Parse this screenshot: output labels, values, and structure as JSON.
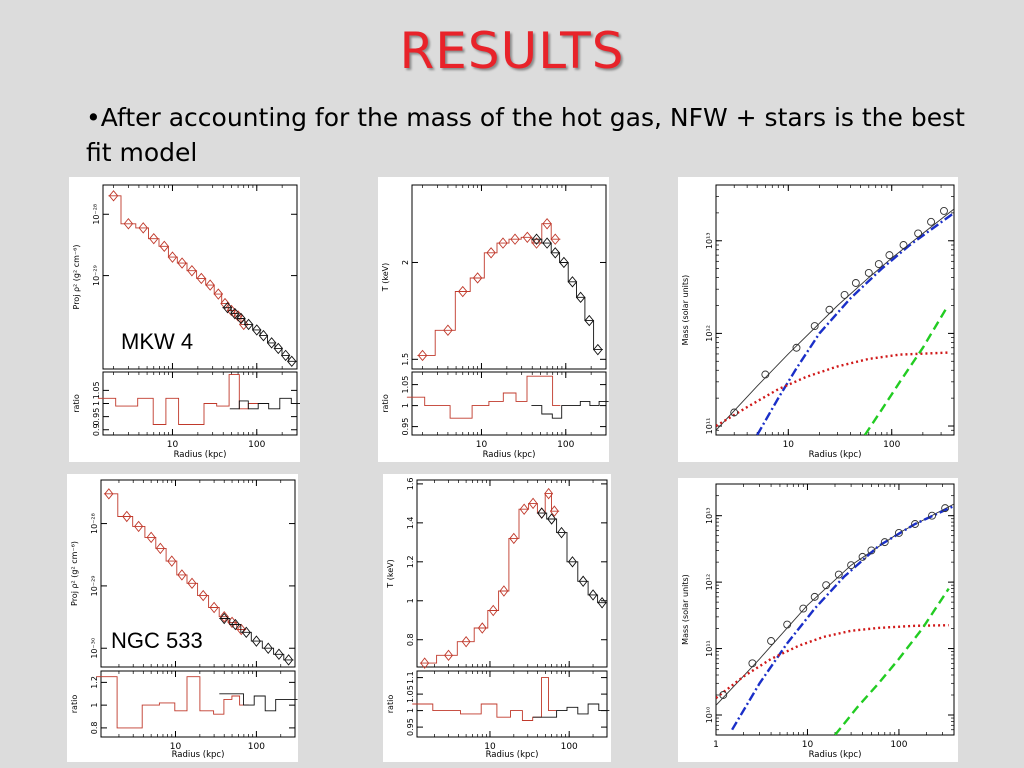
{
  "slide": {
    "title": "RESULTS",
    "bullet": "•After accounting for the mass of the hot gas, NFW + stars is the best fit model"
  },
  "labels": {
    "mkw4": "MKW 4",
    "ngc533": "NGC 533"
  },
  "colors": {
    "data_red": "#c0392b",
    "data_black": "#111111",
    "nfw_blue": "#1a2fc8",
    "stars_red": "#d01818",
    "gas_green": "#22cc22"
  },
  "chart_data": [
    {
      "id": "mkw4_density",
      "type": "line",
      "log_x": true,
      "log_y": true,
      "ylabel": "Proj ρ² (g² cm⁻⁶)",
      "xlabel": "Radius (kpc)",
      "xlim": [
        1.5,
        300
      ],
      "ylim": [
        3e-31,
        3e-28
      ],
      "x_ticks": [
        10,
        100
      ],
      "y_ticks": [
        1e-29,
        1e-28
      ],
      "y_tick_labels": [
        "10⁻²⁹",
        "10⁻²⁸"
      ],
      "series": [
        {
          "color": "red",
          "x": [
            2,
            3,
            4.5,
            6,
            8,
            10,
            13,
            17,
            22,
            28,
            35,
            42,
            50,
            60,
            70
          ],
          "y": [
            2e-28,
            7e-29,
            6e-29,
            4e-29,
            3e-29,
            2e-29,
            1.6e-29,
            1.2e-29,
            9e-30,
            7e-30,
            5e-30,
            3.5e-30,
            2.7e-30,
            2.2e-30,
            1.6e-30
          ]
        },
        {
          "color": "black",
          "x": [
            45,
            55,
            65,
            80,
            100,
            120,
            150,
            180,
            220,
            260
          ],
          "y": [
            3e-30,
            2.4e-30,
            2e-30,
            1.6e-30,
            1.3e-30,
            1.05e-30,
            8e-31,
            6.5e-31,
            5e-31,
            4e-31
          ]
        }
      ],
      "ratio": {
        "ylabel": "ratio",
        "ylim": [
          0.88,
          1.12
        ],
        "y_ticks": [
          0.9,
          0.95,
          1,
          1.05
        ],
        "y_tick_labels": [
          "0.9",
          "0.95",
          "1",
          "1.05"
        ],
        "red_x": [
          1.5,
          3,
          5,
          7,
          10,
          14,
          20,
          28,
          40,
          55,
          70,
          90
        ],
        "red_y": [
          1.02,
          0.99,
          1.02,
          0.92,
          1.02,
          0.92,
          0.92,
          1.0,
          0.99,
          1.11,
          0.98,
          1.0
        ],
        "black_x": [
          55,
          70,
          90,
          120,
          160,
          220,
          300
        ],
        "black_y": [
          0.98,
          1.01,
          0.98,
          1.0,
          0.98,
          1.02,
          1.0
        ]
      }
    },
    {
      "id": "mkw4_temperature",
      "type": "line",
      "log_x": true,
      "ylabel": "T (keV)",
      "xlabel": "Radius (kpc)",
      "xlim": [
        1.5,
        300
      ],
      "ylim": [
        1.45,
        2.4
      ],
      "x_ticks": [
        10,
        100
      ],
      "y_ticks": [
        1.5,
        2
      ],
      "y_tick_labels": [
        "1.5",
        "2"
      ],
      "series": [
        {
          "color": "red",
          "x": [
            2,
            4,
            6,
            9,
            13,
            18,
            25,
            35,
            45,
            60,
            75
          ],
          "y": [
            1.52,
            1.65,
            1.85,
            1.92,
            2.05,
            2.1,
            2.12,
            2.13,
            2.1,
            2.2,
            2.12
          ]
        },
        {
          "color": "black",
          "x": [
            45,
            60,
            75,
            95,
            120,
            150,
            190,
            240
          ],
          "y": [
            2.12,
            2.1,
            2.05,
            2.0,
            1.9,
            1.82,
            1.7,
            1.55
          ]
        }
      ],
      "ratio": {
        "ylabel": "ratio",
        "ylim": [
          0.93,
          1.08
        ],
        "y_ticks": [
          0.95,
          1,
          1.05
        ],
        "y_tick_labels": [
          "0.95",
          "1",
          "1.05"
        ],
        "red_x": [
          1.5,
          3,
          6,
          10,
          15,
          22,
          30,
          40,
          48,
          55,
          65,
          75
        ],
        "red_y": [
          1.02,
          1.0,
          0.97,
          1.0,
          1.01,
          1.03,
          1.01,
          1.07,
          1.07,
          1.07,
          1.07,
          1.0
        ],
        "black_x": [
          45,
          60,
          80,
          100,
          130,
          170,
          220,
          280
        ],
        "black_y": [
          1.0,
          0.98,
          0.97,
          1.0,
          1.0,
          1.01,
          1.0,
          1.01
        ]
      }
    },
    {
      "id": "mkw4_mass",
      "type": "line",
      "log_x": true,
      "log_y": true,
      "ylabel": "Mass (solar units)",
      "xlabel": "Radius (kpc)",
      "xlim": [
        2,
        400
      ],
      "ylim": [
        80000000000.0,
        40000000000000.0
      ],
      "x_ticks": [
        10,
        100
      ],
      "y_ticks": [
        100000000000.0,
        1000000000000.0,
        10000000000000.0
      ],
      "y_tick_labels": [
        "10¹¹",
        "10¹²",
        "10¹³"
      ],
      "points": {
        "x": [
          3,
          6,
          12,
          18,
          25,
          35,
          45,
          60,
          75,
          95,
          130,
          180,
          240,
          320
        ],
        "y": [
          140000000000.0,
          360000000000.0,
          700000000000.0,
          1200000000000.0,
          1800000000000.0,
          2600000000000.0,
          3500000000000.0,
          4500000000000.0,
          5600000000000.0,
          7000000000000.0,
          9000000000000.0,
          12000000000000.0,
          16000000000000.0,
          21000000000000.0
        ]
      },
      "total_fit": {
        "x": [
          2,
          5,
          10,
          30,
          60,
          100,
          200,
          400
        ],
        "y": [
          90000000000.0,
          270000000000.0,
          600000000000.0,
          2000000000000.0,
          4000000000000.0,
          6500000000000.0,
          12000000000000.0,
          22000000000000.0
        ]
      },
      "nfw": {
        "x": [
          5,
          8,
          12,
          20,
          40,
          80,
          150,
          400
        ],
        "y": [
          80000000000.0,
          200000000000.0,
          420000000000.0,
          1000000000000.0,
          2400000000000.0,
          5000000000000.0,
          9000000000000.0,
          20000000000000.0
        ]
      },
      "stars": {
        "x": [
          2,
          4,
          8,
          15,
          30,
          60,
          120,
          350
        ],
        "y": [
          100000000000.0,
          160000000000.0,
          250000000000.0,
          340000000000.0,
          440000000000.0,
          530000000000.0,
          590000000000.0,
          620000000000.0
        ]
      },
      "gas": {
        "x": [
          55,
          80,
          120,
          200,
          350
        ],
        "y": [
          80000000000.0,
          150000000000.0,
          300000000000.0,
          700000000000.0,
          2000000000000.0
        ]
      }
    },
    {
      "id": "ngc533_density",
      "type": "line",
      "log_x": true,
      "log_y": true,
      "ylabel": "Proj ρ² (g² cm⁻⁶)",
      "xlabel": "Radius (kpc)",
      "xlim": [
        1.2,
        300
      ],
      "ylim": [
        5e-31,
        5e-28
      ],
      "x_ticks": [
        10,
        100
      ],
      "y_ticks": [
        1e-30,
        1e-29,
        1e-28
      ],
      "y_tick_labels": [
        "10⁻³⁰",
        "10⁻²⁹",
        "10⁻²⁸"
      ],
      "series": [
        {
          "color": "red",
          "x": [
            1.5,
            2.5,
            3.5,
            5,
            6.5,
            9,
            12,
            16,
            22,
            30,
            40,
            50,
            65
          ],
          "y": [
            3e-28,
            1.3e-28,
            9e-29,
            6e-29,
            4e-29,
            2.5e-29,
            1.5e-29,
            1.1e-29,
            7e-30,
            4.5e-30,
            3.2e-30,
            2.6e-30,
            2e-30
          ]
        },
        {
          "color": "black",
          "x": [
            40,
            55,
            75,
            100,
            140,
            190,
            250
          ],
          "y": [
            3e-30,
            2.4e-30,
            1.8e-30,
            1.3e-30,
            1e-30,
            8e-31,
            6.5e-31
          ]
        }
      ],
      "ratio": {
        "ylabel": "ratio",
        "ylim": [
          0.72,
          1.3
        ],
        "y_ticks": [
          0.8,
          1,
          1.2
        ],
        "y_tick_labels": [
          "0.8",
          "1",
          "1.2"
        ],
        "red_x": [
          1.2,
          3,
          5,
          8,
          12,
          16,
          25,
          35,
          45,
          55,
          70
        ],
        "red_y": [
          1.25,
          0.8,
          1.0,
          1.02,
          0.95,
          1.25,
          0.95,
          0.92,
          1.05,
          1.08,
          1.0
        ],
        "black_x": [
          40,
          60,
          80,
          110,
          150,
          200,
          280
        ],
        "black_y": [
          1.1,
          1.1,
          1.0,
          1.08,
          0.95,
          1.05,
          1.05
        ]
      }
    },
    {
      "id": "ngc533_temperature",
      "type": "line",
      "log_x": true,
      "ylabel": "T (keV)",
      "xlabel": "Radius (kpc)",
      "xlim": [
        1.2,
        300
      ],
      "ylim": [
        0.66,
        1.62
      ],
      "x_ticks": [
        10,
        100
      ],
      "y_ticks": [
        0.8,
        1,
        1.2,
        1.4,
        1.6
      ],
      "y_tick_labels": [
        "0.8",
        "1",
        "1.2",
        "1.4",
        "1.6"
      ],
      "series": [
        {
          "color": "red",
          "x": [
            1.5,
            3,
            5,
            8,
            11,
            15,
            20,
            27,
            35,
            45,
            55,
            65
          ],
          "y": [
            0.68,
            0.72,
            0.79,
            0.86,
            0.95,
            1.05,
            1.32,
            1.47,
            1.5,
            1.45,
            1.55,
            1.46
          ]
        },
        {
          "color": "black",
          "x": [
            45,
            60,
            80,
            110,
            150,
            200,
            260
          ],
          "y": [
            1.45,
            1.42,
            1.35,
            1.2,
            1.1,
            1.03,
            0.99
          ]
        }
      ],
      "ratio": {
        "ylabel": "ratio",
        "ylim": [
          0.92,
          1.12
        ],
        "y_ticks": [
          0.95,
          1,
          1.05,
          1.1
        ],
        "y_tick_labels": [
          "0.95",
          "1",
          "1.05",
          "1.1"
        ],
        "red_x": [
          1.2,
          3,
          6,
          10,
          15,
          22,
          30,
          40,
          50,
          60
        ],
        "red_y": [
          1.02,
          1.0,
          0.99,
          1.02,
          0.98,
          1.0,
          0.97,
          0.98,
          1.1,
          1.0
        ],
        "black_x": [
          40,
          60,
          80,
          110,
          150,
          200,
          280
        ],
        "black_y": [
          0.98,
          0.98,
          1.0,
          1.01,
          0.99,
          1.02,
          1.0
        ]
      }
    },
    {
      "id": "ngc533_mass",
      "type": "line",
      "log_x": true,
      "log_y": true,
      "ylabel": "Mass (solar units)",
      "xlabel": "Radius (kpc)",
      "xlim": [
        1,
        400
      ],
      "ylim": [
        5000000000.0,
        30000000000000.0
      ],
      "x_ticks": [
        1,
        10,
        100
      ],
      "y_ticks": [
        10000000000.0,
        100000000000.0,
        1000000000000.0,
        10000000000000.0
      ],
      "y_tick_labels": [
        "10¹⁰",
        "10¹¹",
        "10¹²",
        "10¹³"
      ],
      "points": {
        "x": [
          1.2,
          2.5,
          4,
          6,
          9,
          12,
          16,
          22,
          30,
          40,
          50,
          70,
          100,
          150,
          230,
          320
        ],
        "y": [
          20000000000.0,
          60000000000.0,
          130000000000.0,
          230000000000.0,
          400000000000.0,
          600000000000.0,
          900000000000.0,
          1300000000000.0,
          1800000000000.0,
          2400000000000.0,
          3000000000000.0,
          4000000000000.0,
          5500000000000.0,
          7500000000000.0,
          10000000000000.0,
          13000000000000.0
        ]
      },
      "total_fit": {
        "x": [
          1,
          3,
          10,
          30,
          100,
          400
        ],
        "y": [
          14000000000.0,
          70000000000.0,
          450000000000.0,
          1800000000000.0,
          5500000000000.0,
          15000000000000.0
        ]
      },
      "nfw": {
        "x": [
          1.5,
          3,
          6,
          12,
          25,
          60,
          150,
          400
        ],
        "y": [
          6000000000.0,
          30000000000.0,
          120000000000.0,
          400000000000.0,
          1200000000000.0,
          3500000000000.0,
          7500000000000.0,
          14000000000000.0
        ]
      },
      "stars": {
        "x": [
          1,
          2,
          4,
          8,
          15,
          30,
          60,
          150,
          350
        ],
        "y": [
          18000000000.0,
          38000000000.0,
          70000000000.0,
          110000000000.0,
          150000000000.0,
          185000000000.0,
          205000000000.0,
          220000000000.0,
          225000000000.0
        ]
      },
      "gas": {
        "x": [
          20,
          35,
          60,
          100,
          180,
          350
        ],
        "y": [
          5000000000.0,
          13000000000.0,
          30000000000.0,
          70000000000.0,
          200000000000.0,
          800000000000.0
        ]
      }
    }
  ]
}
